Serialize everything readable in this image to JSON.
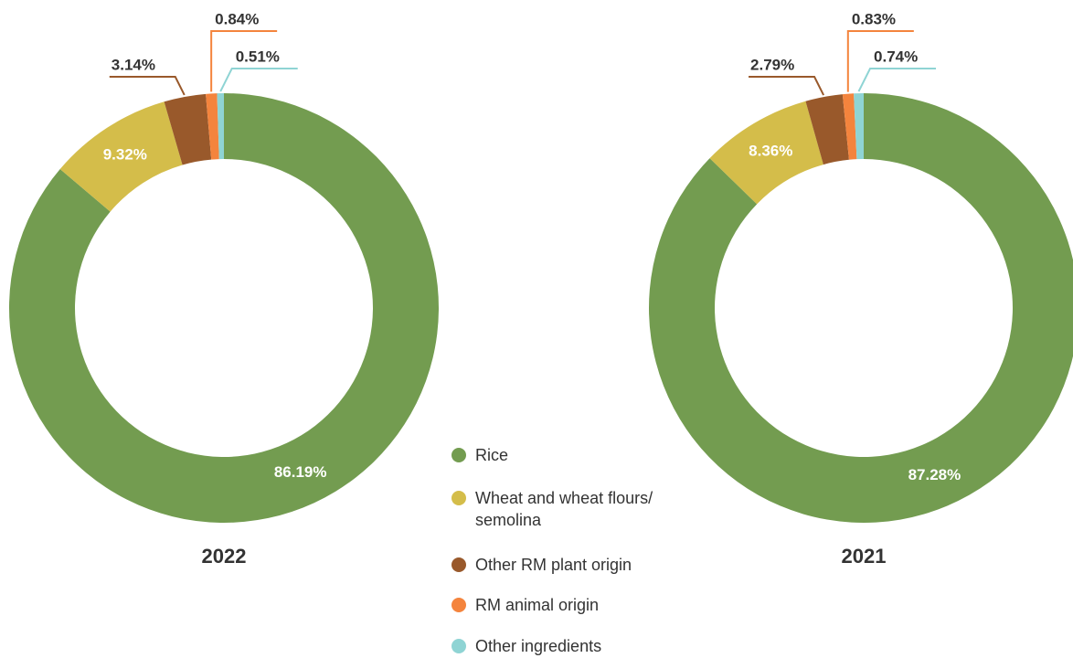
{
  "chart_data": [
    {
      "type": "pie",
      "title": "2022",
      "categories": [
        "Rice",
        "Wheat and wheat flours/ semolina",
        "Other RM plant origin",
        "RM animal origin",
        "Other ingredients"
      ],
      "values": [
        86.19,
        9.32,
        3.14,
        0.84,
        0.51
      ],
      "value_labels": [
        "86.19%",
        "9.32%",
        "3.14%",
        "0.84%",
        "0.51%"
      ],
      "colors": [
        "#739c50",
        "#d4bd4a",
        "#99592b",
        "#f4843d",
        "#8fd4d4"
      ]
    },
    {
      "type": "pie",
      "title": "2021",
      "categories": [
        "Rice",
        "Wheat and wheat flours/ semolina",
        "Other RM plant origin",
        "RM animal origin",
        "Other ingredients"
      ],
      "values": [
        87.28,
        8.36,
        2.79,
        0.83,
        0.74
      ],
      "value_labels": [
        "87.28%",
        "8.36%",
        "2.79%",
        "0.83%",
        "0.74%"
      ],
      "colors": [
        "#739c50",
        "#d4bd4a",
        "#99592b",
        "#f4843d",
        "#8fd4d4"
      ]
    }
  ]
}
